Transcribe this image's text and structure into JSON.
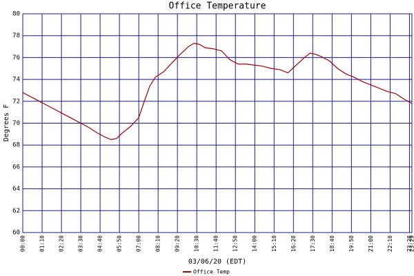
{
  "chart_data": {
    "type": "line",
    "title": "Office Temperature",
    "x_label": "03/06/20 (EDT)",
    "y_label": "Degrees F",
    "x": [
      0,
      30,
      60,
      90,
      120,
      150,
      180,
      210,
      240,
      270,
      300,
      320,
      340,
      360,
      390,
      420,
      440,
      460,
      480,
      510,
      540,
      570,
      600,
      620,
      640,
      660,
      690,
      720,
      750,
      780,
      810,
      840,
      870,
      900,
      930,
      960,
      990,
      1020,
      1040,
      1060,
      1080,
      1110,
      1140,
      1170,
      1200,
      1230,
      1260,
      1290,
      1320,
      1350,
      1380,
      1409
    ],
    "series": [
      {
        "name": "Office Temp",
        "color": "#a00000",
        "values": [
          72.8,
          72.4,
          72.0,
          71.6,
          71.2,
          70.8,
          70.4,
          70.0,
          69.6,
          69.1,
          68.7,
          68.5,
          68.6,
          69.1,
          69.7,
          70.5,
          72.0,
          73.4,
          74.2,
          74.7,
          75.5,
          76.3,
          77.0,
          77.3,
          77.2,
          76.9,
          76.8,
          76.6,
          75.8,
          75.4,
          75.4,
          75.3,
          75.2,
          75.0,
          74.9,
          74.6,
          75.3,
          76.0,
          76.4,
          76.3,
          76.1,
          75.7,
          75.0,
          74.5,
          74.2,
          73.8,
          73.5,
          73.2,
          72.9,
          72.7,
          72.2,
          71.8
        ]
      }
    ],
    "xlim": [
      0,
      1409
    ],
    "xticks": [
      {
        "value": 0,
        "label": "00:00"
      },
      {
        "value": 70,
        "label": "01:10"
      },
      {
        "value": 140,
        "label": "02:20"
      },
      {
        "value": 210,
        "label": "03:30"
      },
      {
        "value": 280,
        "label": "04:40"
      },
      {
        "value": 350,
        "label": "05:50"
      },
      {
        "value": 420,
        "label": "07:00"
      },
      {
        "value": 490,
        "label": "08:10"
      },
      {
        "value": 560,
        "label": "09:20"
      },
      {
        "value": 630,
        "label": "10:30"
      },
      {
        "value": 700,
        "label": "11:40"
      },
      {
        "value": 770,
        "label": "12:50"
      },
      {
        "value": 840,
        "label": "14:00"
      },
      {
        "value": 910,
        "label": "15:10"
      },
      {
        "value": 980,
        "label": "16:20"
      },
      {
        "value": 1050,
        "label": "17:30"
      },
      {
        "value": 1120,
        "label": "18:40"
      },
      {
        "value": 1190,
        "label": "19:50"
      },
      {
        "value": 1260,
        "label": "21:00"
      },
      {
        "value": 1330,
        "label": "22:10"
      },
      {
        "value": 1400,
        "label": "23:20"
      },
      {
        "value": 1409,
        "label": "23:29"
      }
    ],
    "ylim": [
      60,
      80
    ],
    "yticks": [
      60,
      62,
      64,
      66,
      68,
      70,
      72,
      74,
      76,
      78,
      80
    ],
    "grid": true
  }
}
